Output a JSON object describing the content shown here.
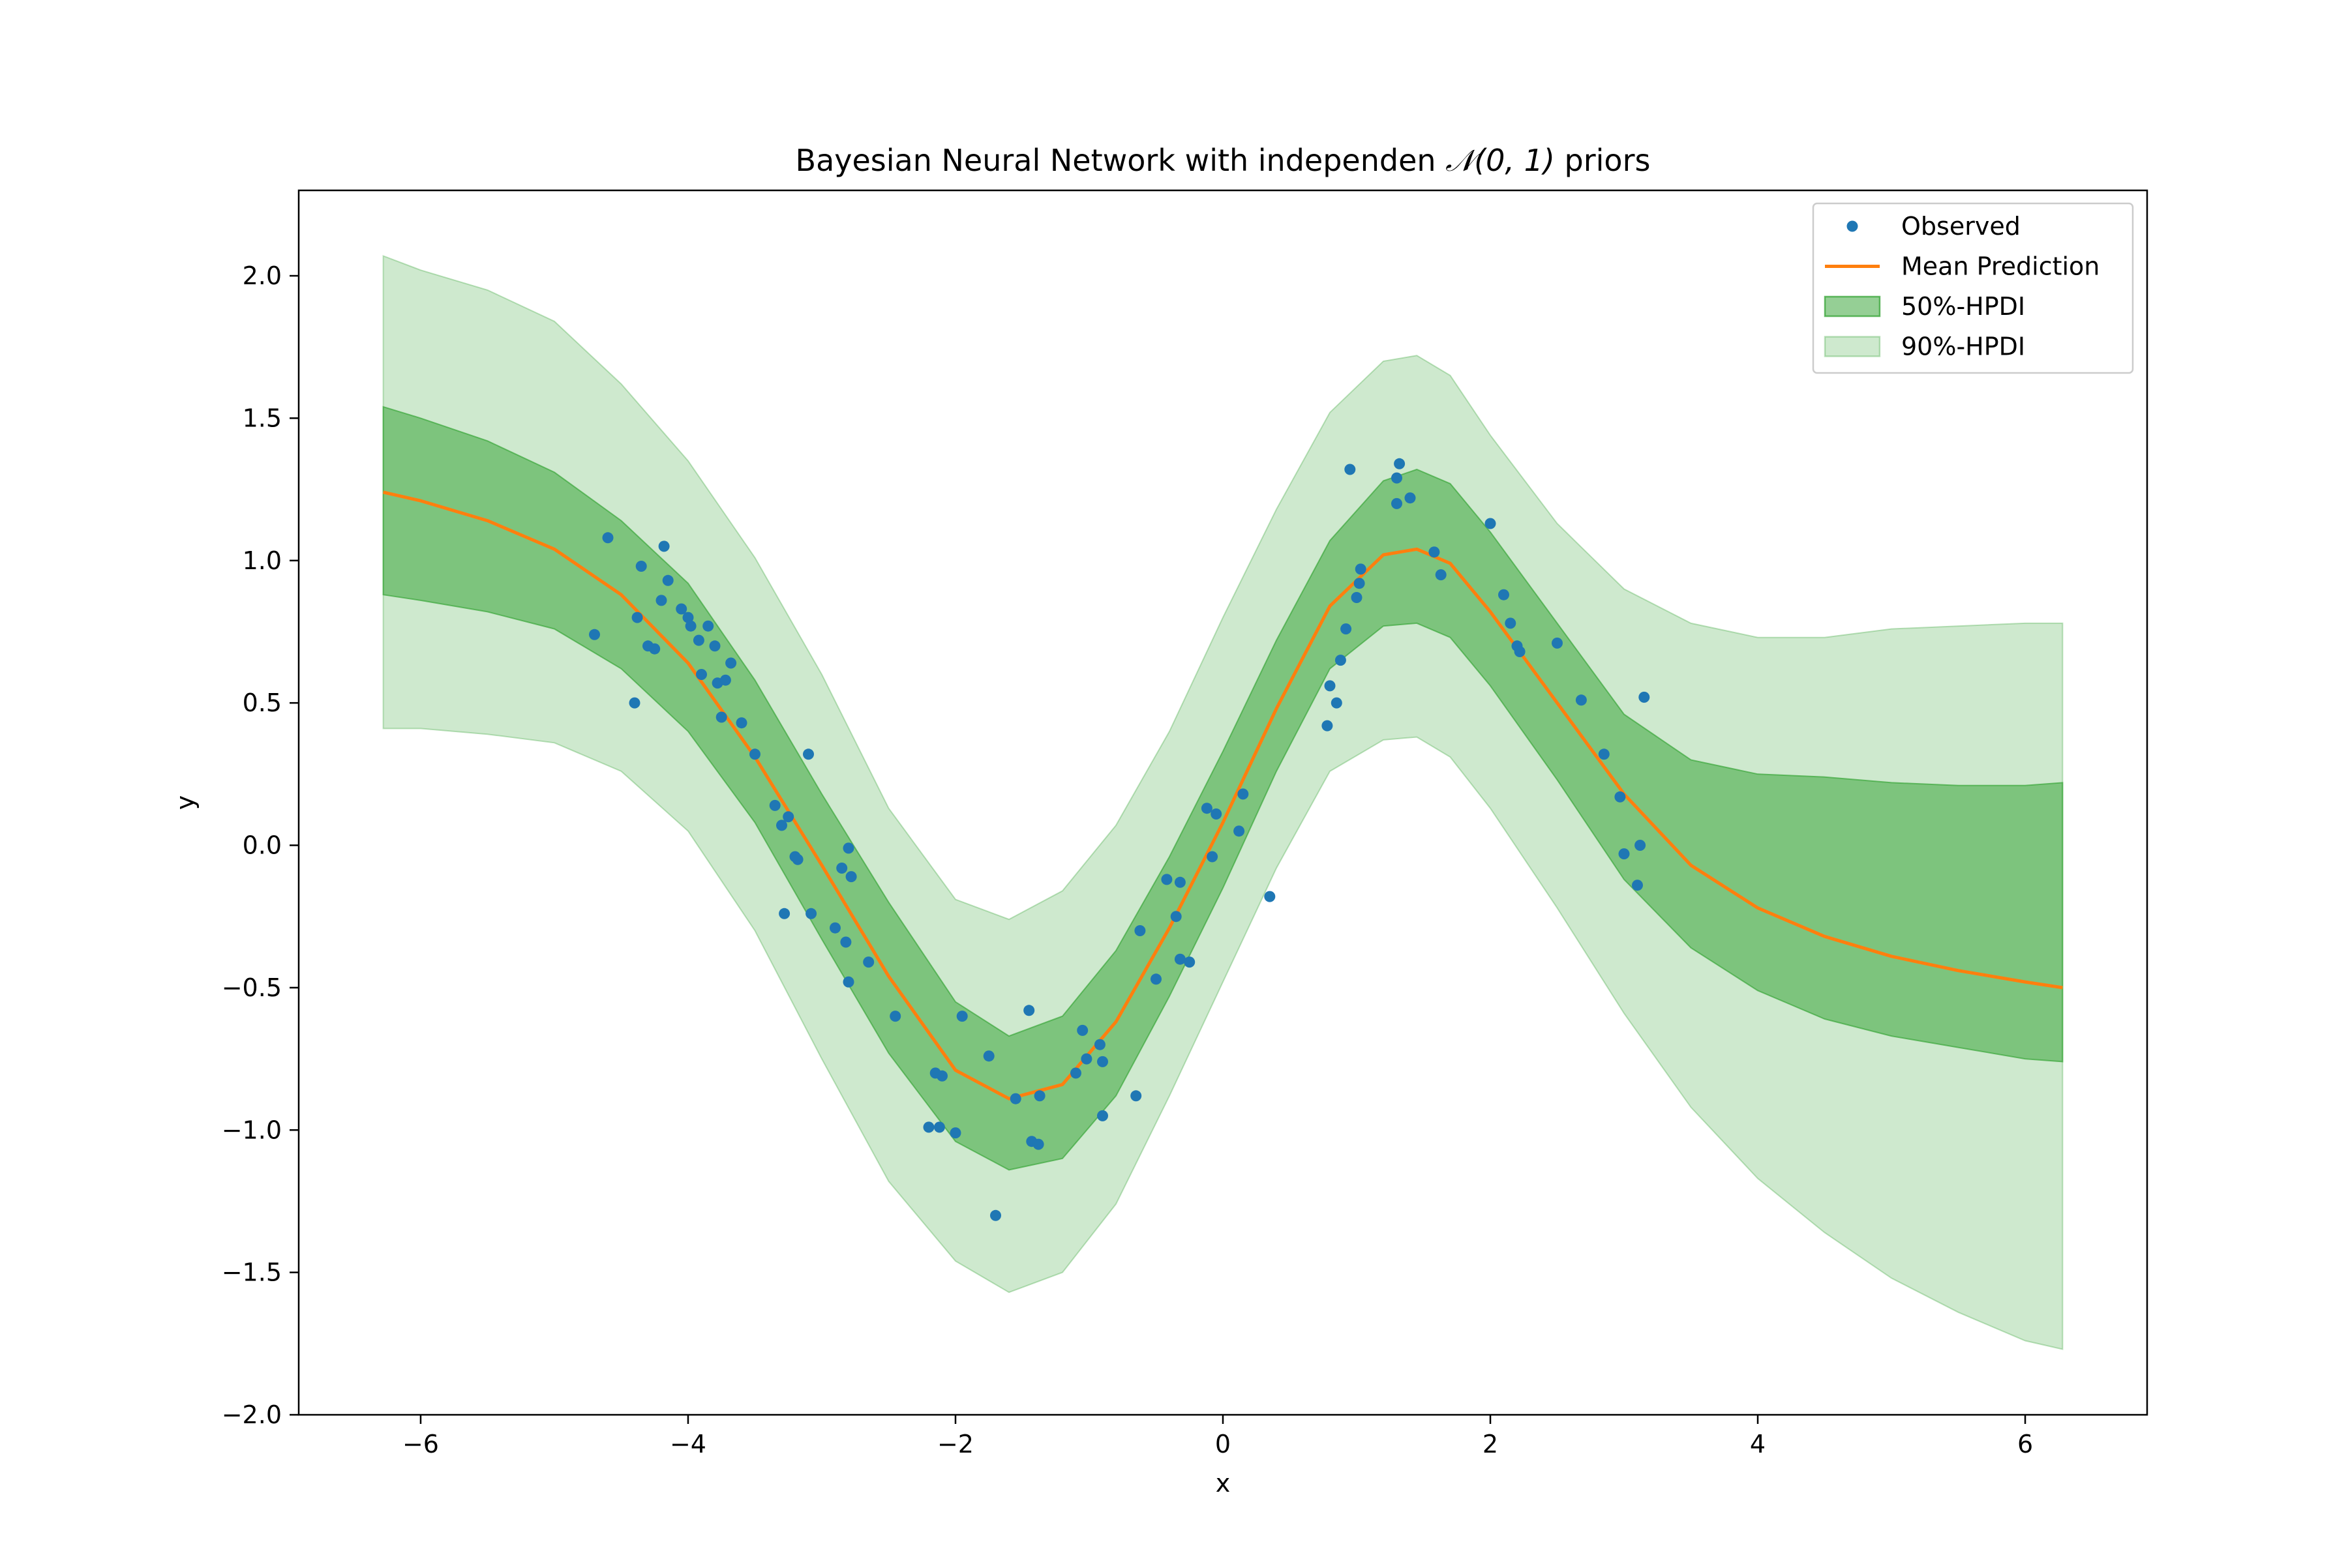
{
  "chart_data": {
    "type": "line",
    "title_prefix": "Bayesian Neural Network with independen ",
    "title_math": "𝒩(0, 1)",
    "title_suffix": " priors",
    "xlabel": "x",
    "ylabel": "y",
    "xlim": [
      -6.912,
      6.912
    ],
    "ylim": [
      -2.0,
      2.3
    ],
    "xticks": [
      -6,
      -4,
      -2,
      0,
      2,
      4,
      6
    ],
    "xtick_labels": [
      "−6",
      "−4",
      "−2",
      "0",
      "2",
      "4",
      "6"
    ],
    "yticks": [
      -2.0,
      -1.5,
      -1.0,
      -0.5,
      0.0,
      0.5,
      1.0,
      1.5,
      2.0
    ],
    "ytick_labels": [
      "−2.0",
      "−1.5",
      "−1.0",
      "−0.5",
      "0.0",
      "0.5",
      "1.0",
      "1.5",
      "2.0"
    ],
    "grid": false,
    "legend_position": "top-right",
    "colors": {
      "observed": "#1f77b4",
      "mean": "#ff7f0e",
      "hpdi50": "#2ca02c",
      "hpdi90": "#2ca02c"
    },
    "series": [
      {
        "name": "Observed",
        "kind": "scatter",
        "points": [
          [
            -4.7,
            0.74
          ],
          [
            -4.6,
            1.08
          ],
          [
            -4.4,
            0.5
          ],
          [
            -4.38,
            0.8
          ],
          [
            -4.35,
            0.98
          ],
          [
            -4.3,
            0.7
          ],
          [
            -4.25,
            0.69
          ],
          [
            -4.2,
            0.86
          ],
          [
            -4.18,
            1.05
          ],
          [
            -4.15,
            0.93
          ],
          [
            -4.05,
            0.83
          ],
          [
            -4.0,
            0.8
          ],
          [
            -3.98,
            0.77
          ],
          [
            -3.92,
            0.72
          ],
          [
            -3.9,
            0.6
          ],
          [
            -3.85,
            0.77
          ],
          [
            -3.8,
            0.7
          ],
          [
            -3.78,
            0.57
          ],
          [
            -3.75,
            0.45
          ],
          [
            -3.72,
            0.58
          ],
          [
            -3.68,
            0.64
          ],
          [
            -3.6,
            0.43
          ],
          [
            -3.5,
            0.32
          ],
          [
            -3.35,
            0.14
          ],
          [
            -3.3,
            0.07
          ],
          [
            -3.28,
            -0.24
          ],
          [
            -3.25,
            0.1
          ],
          [
            -3.2,
            -0.04
          ],
          [
            -3.18,
            -0.05
          ],
          [
            -3.1,
            0.32
          ],
          [
            -3.08,
            -0.24
          ],
          [
            -2.9,
            -0.29
          ],
          [
            -2.85,
            -0.08
          ],
          [
            -2.82,
            -0.34
          ],
          [
            -2.8,
            -0.48
          ],
          [
            -2.78,
            -0.11
          ],
          [
            -2.8,
            -0.01
          ],
          [
            -2.65,
            -0.41
          ],
          [
            -2.45,
            -0.6
          ],
          [
            -2.2,
            -0.99
          ],
          [
            -2.15,
            -0.8
          ],
          [
            -2.12,
            -0.99
          ],
          [
            -2.1,
            -0.81
          ],
          [
            -2.0,
            -1.01
          ],
          [
            -1.95,
            -0.6
          ],
          [
            -1.75,
            -0.74
          ],
          [
            -1.7,
            -1.3
          ],
          [
            -1.55,
            -0.89
          ],
          [
            -1.45,
            -0.58
          ],
          [
            -1.43,
            -1.04
          ],
          [
            -1.38,
            -1.05
          ],
          [
            -1.37,
            -0.88
          ],
          [
            -1.1,
            -0.8
          ],
          [
            -1.05,
            -0.65
          ],
          [
            -1.02,
            -0.75
          ],
          [
            -0.92,
            -0.7
          ],
          [
            -0.9,
            -0.76
          ],
          [
            -0.9,
            -0.95
          ],
          [
            -0.65,
            -0.88
          ],
          [
            -0.62,
            -0.3
          ],
          [
            -0.5,
            -0.47
          ],
          [
            -0.42,
            -0.12
          ],
          [
            -0.35,
            -0.25
          ],
          [
            -0.32,
            -0.4
          ],
          [
            -0.32,
            -0.13
          ],
          [
            -0.25,
            -0.41
          ],
          [
            -0.12,
            0.13
          ],
          [
            -0.08,
            -0.04
          ],
          [
            -0.05,
            0.11
          ],
          [
            0.12,
            0.05
          ],
          [
            0.15,
            0.18
          ],
          [
            0.35,
            -0.18
          ],
          [
            0.78,
            0.42
          ],
          [
            0.8,
            0.56
          ],
          [
            0.85,
            0.5
          ],
          [
            0.88,
            0.65
          ],
          [
            0.92,
            0.76
          ],
          [
            0.95,
            1.32
          ],
          [
            1.0,
            0.87
          ],
          [
            1.02,
            0.92
          ],
          [
            1.03,
            0.97
          ],
          [
            1.3,
            1.2
          ],
          [
            1.3,
            1.29
          ],
          [
            1.32,
            1.34
          ],
          [
            1.4,
            1.22
          ],
          [
            1.58,
            1.03
          ],
          [
            1.63,
            0.95
          ],
          [
            2.0,
            1.13
          ],
          [
            2.1,
            0.88
          ],
          [
            2.15,
            0.78
          ],
          [
            2.2,
            0.7
          ],
          [
            2.22,
            0.68
          ],
          [
            2.5,
            0.71
          ],
          [
            2.68,
            0.51
          ],
          [
            2.85,
            0.32
          ],
          [
            2.97,
            0.17
          ],
          [
            3.0,
            -0.03
          ],
          [
            3.1,
            -0.14
          ],
          [
            3.12,
            0.0
          ],
          [
            3.15,
            0.52
          ]
        ]
      },
      {
        "name": "Mean Prediction",
        "kind": "line",
        "x": [
          -6.28,
          -6.0,
          -5.5,
          -5.0,
          -4.5,
          -4.0,
          -3.5,
          -3.0,
          -2.5,
          -2.0,
          -1.6,
          -1.2,
          -0.8,
          -0.4,
          0.0,
          0.4,
          0.8,
          1.2,
          1.45,
          1.7,
          2.0,
          2.5,
          3.0,
          3.5,
          4.0,
          4.5,
          5.0,
          5.5,
          6.0,
          6.28
        ],
        "y": [
          1.24,
          1.21,
          1.14,
          1.04,
          0.88,
          0.64,
          0.31,
          -0.07,
          -0.46,
          -0.79,
          -0.89,
          -0.84,
          -0.62,
          -0.29,
          0.08,
          0.48,
          0.84,
          1.02,
          1.04,
          0.99,
          0.82,
          0.5,
          0.18,
          -0.07,
          -0.22,
          -0.32,
          -0.39,
          -0.44,
          -0.48,
          -0.5
        ]
      },
      {
        "name": "50%-HPDI",
        "kind": "band",
        "x": [
          -6.28,
          -6.0,
          -5.5,
          -5.0,
          -4.5,
          -4.0,
          -3.5,
          -3.0,
          -2.5,
          -2.0,
          -1.6,
          -1.2,
          -0.8,
          -0.4,
          0.0,
          0.4,
          0.8,
          1.2,
          1.45,
          1.7,
          2.0,
          2.5,
          3.0,
          3.5,
          4.0,
          4.5,
          5.0,
          5.5,
          6.0,
          6.28
        ],
        "lower": [
          0.88,
          0.86,
          0.82,
          0.76,
          0.62,
          0.4,
          0.08,
          -0.33,
          -0.73,
          -1.04,
          -1.14,
          -1.1,
          -0.88,
          -0.53,
          -0.15,
          0.26,
          0.62,
          0.77,
          0.78,
          0.73,
          0.56,
          0.23,
          -0.12,
          -0.36,
          -0.51,
          -0.61,
          -0.67,
          -0.71,
          -0.75,
          -0.76
        ],
        "upper": [
          1.54,
          1.5,
          1.42,
          1.31,
          1.14,
          0.92,
          0.58,
          0.18,
          -0.2,
          -0.55,
          -0.67,
          -0.6,
          -0.37,
          -0.04,
          0.33,
          0.72,
          1.07,
          1.28,
          1.32,
          1.27,
          1.1,
          0.78,
          0.46,
          0.3,
          0.25,
          0.24,
          0.22,
          0.21,
          0.21,
          0.22
        ]
      },
      {
        "name": "90%-HPDI",
        "kind": "band",
        "x": [
          -6.28,
          -6.0,
          -5.5,
          -5.0,
          -4.5,
          -4.0,
          -3.5,
          -3.0,
          -2.5,
          -2.0,
          -1.6,
          -1.2,
          -0.8,
          -0.4,
          0.0,
          0.4,
          0.8,
          1.2,
          1.45,
          1.7,
          2.0,
          2.5,
          3.0,
          3.5,
          4.0,
          4.5,
          5.0,
          5.5,
          6.0,
          6.28
        ],
        "lower": [
          0.41,
          0.41,
          0.39,
          0.36,
          0.26,
          0.05,
          -0.3,
          -0.75,
          -1.18,
          -1.46,
          -1.57,
          -1.5,
          -1.26,
          -0.88,
          -0.48,
          -0.08,
          0.26,
          0.37,
          0.38,
          0.31,
          0.13,
          -0.22,
          -0.59,
          -0.92,
          -1.17,
          -1.36,
          -1.52,
          -1.64,
          -1.74,
          -1.77
        ],
        "upper": [
          2.07,
          2.02,
          1.95,
          1.84,
          1.62,
          1.35,
          1.01,
          0.6,
          0.13,
          -0.19,
          -0.26,
          -0.16,
          0.07,
          0.4,
          0.8,
          1.18,
          1.52,
          1.7,
          1.72,
          1.65,
          1.44,
          1.13,
          0.9,
          0.78,
          0.73,
          0.73,
          0.76,
          0.77,
          0.78,
          0.78
        ]
      }
    ],
    "legend": [
      {
        "label": "Observed",
        "kind": "marker"
      },
      {
        "label": "Mean Prediction",
        "kind": "line"
      },
      {
        "label": "50%-HPDI",
        "kind": "patch50"
      },
      {
        "label": "90%-HPDI",
        "kind": "patch90"
      }
    ]
  }
}
